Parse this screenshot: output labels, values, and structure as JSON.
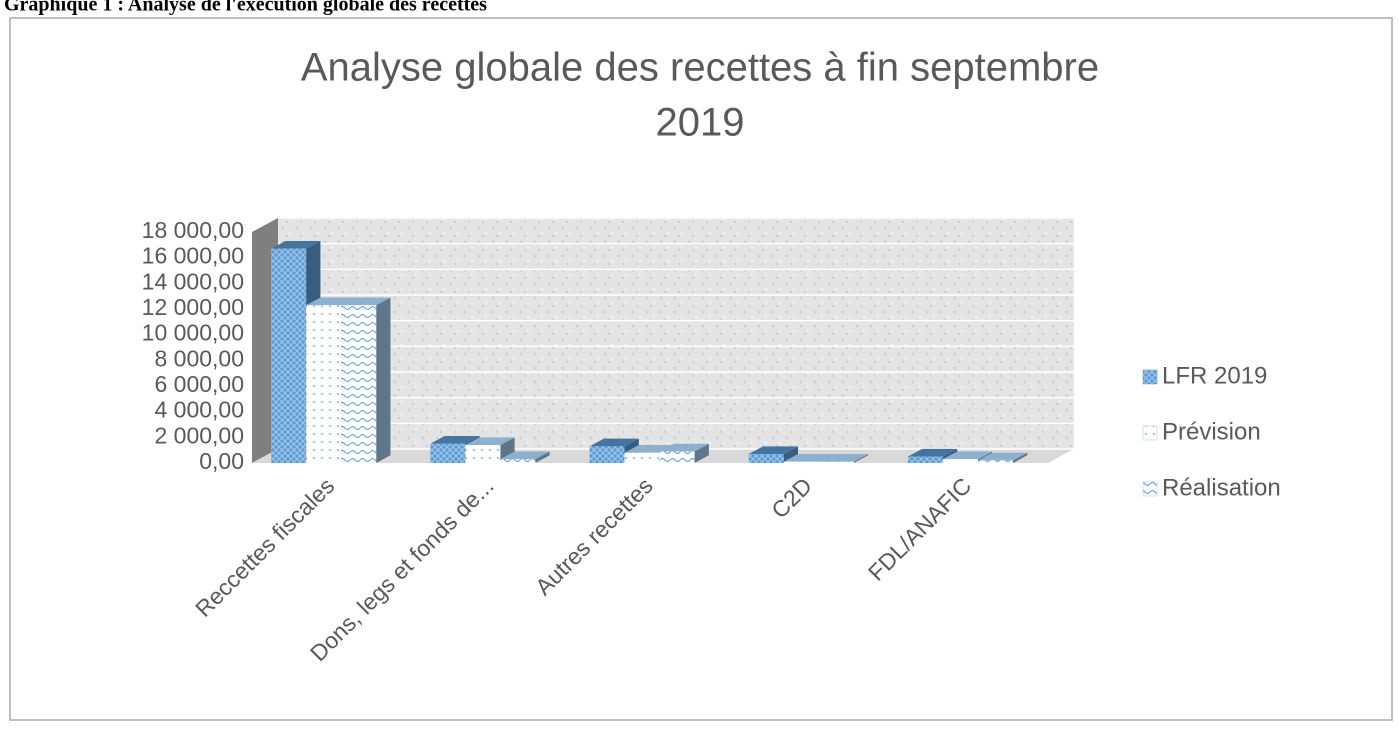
{
  "header": {
    "caption": "Graphique 1 : Analyse de l'exécution globale des recettes"
  },
  "chart_data": {
    "type": "bar3d",
    "title": "Analyse globale des recettes à fin septembre 2019",
    "categories": [
      "Reccettes fiscales",
      "Dons, legs et fonds de...",
      "Autres recettes",
      "C2D",
      "FDL/ANAFIC"
    ],
    "series": [
      {
        "name": "LFR 2019",
        "color": "#5b9bd5",
        "values": [
          16700,
          1500,
          1300,
          700,
          500
        ]
      },
      {
        "name": "Prévision",
        "color": "#9dc3e6",
        "values": [
          12300,
          1400,
          800,
          100,
          300
        ]
      },
      {
        "name": "Réalisation",
        "color": "#9dc3e6",
        "values": [
          12300,
          300,
          900,
          100,
          200
        ]
      }
    ],
    "ylim": [
      0,
      18000
    ],
    "yticks": [
      {
        "value": 0,
        "label": "0,00"
      },
      {
        "value": 2000,
        "label": "2 000,00"
      },
      {
        "value": 4000,
        "label": "4 000,00"
      },
      {
        "value": 6000,
        "label": "6 000,00"
      },
      {
        "value": 8000,
        "label": "8 000,00"
      },
      {
        "value": 10000,
        "label": "10 000,00"
      },
      {
        "value": 12000,
        "label": "12 000,00"
      },
      {
        "value": 14000,
        "label": "14 000,00"
      },
      {
        "value": 16000,
        "label": "16 000,00"
      },
      {
        "value": 18000,
        "label": "18 000,00"
      }
    ],
    "grid": true,
    "legend": "right"
  }
}
